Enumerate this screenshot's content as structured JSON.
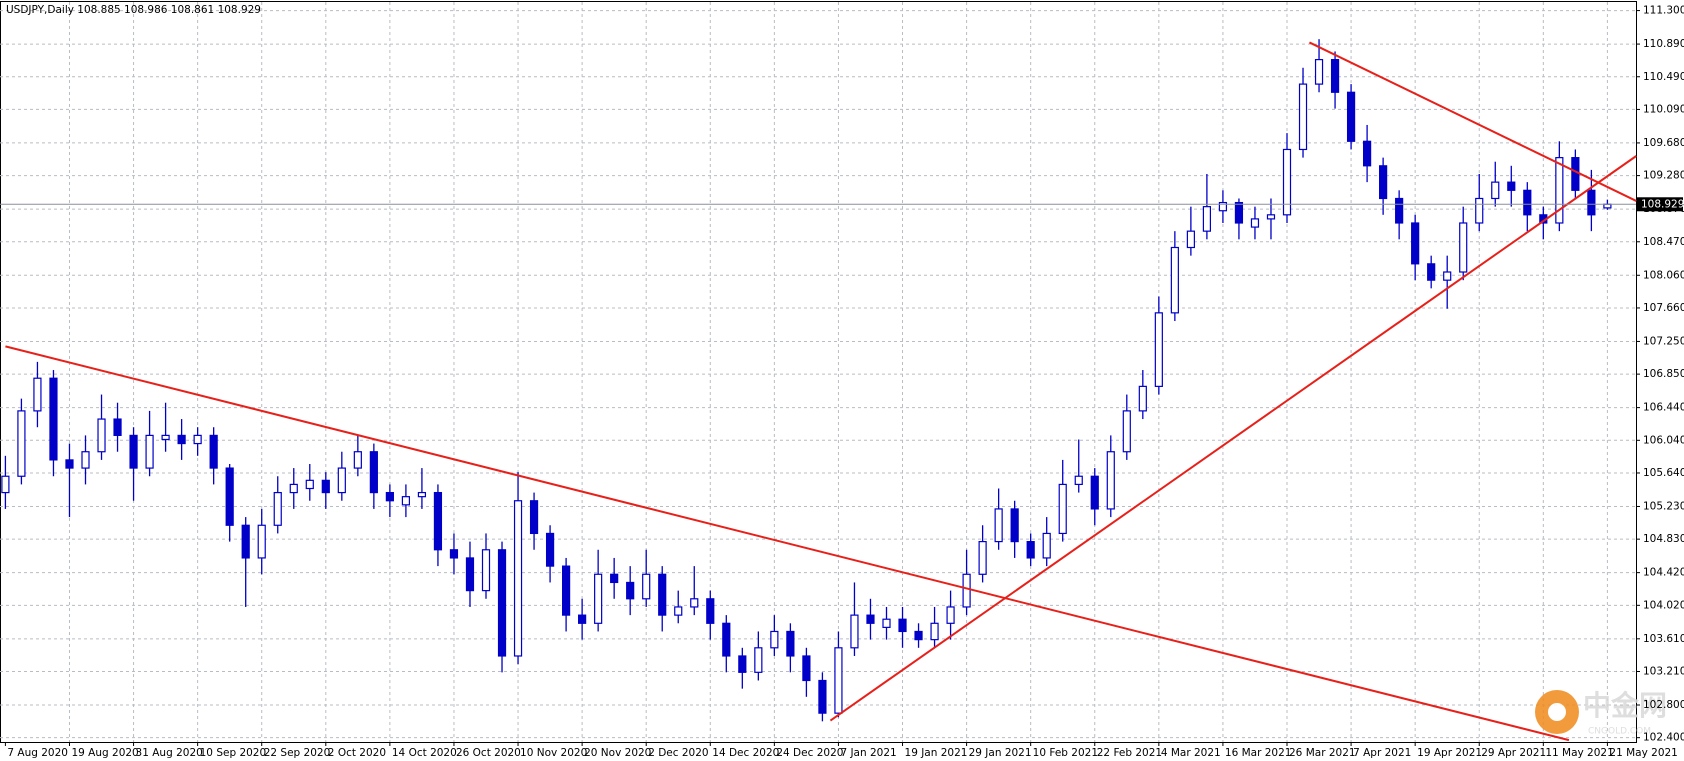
{
  "chart_data": {
    "type": "candlestick",
    "title": "USDJPY,Daily  108.885 108.986 108.861 108.929",
    "x": [
      "7 Aug 2020",
      null,
      null,
      null,
      "19 Aug 2020",
      null,
      null,
      null,
      "31 Aug 2020",
      null,
      null,
      null,
      "10 Sep 2020",
      null,
      null,
      null,
      "22 Sep 2020",
      null,
      null,
      null,
      "2 Oct 2020",
      null,
      null,
      null,
      "14 Oct 2020",
      null,
      null,
      null,
      "26 Oct 2020",
      null,
      null,
      null,
      "10 Nov 2020",
      null,
      null,
      null,
      "20 Nov 2020",
      null,
      null,
      null,
      "2 Dec 2020",
      null,
      null,
      null,
      "14 Dec 2020",
      null,
      null,
      null,
      "24 Dec 2020",
      null,
      null,
      null,
      "7 Jan 2021",
      null,
      null,
      null,
      "19 Jan 2021",
      null,
      null,
      null,
      "29 Jan 2021",
      null,
      null,
      null,
      "10 Feb 2021",
      null,
      null,
      null,
      "22 Feb 2021",
      null,
      null,
      null,
      "4 Mar 2021",
      null,
      null,
      null,
      "16 Mar 2021",
      null,
      null,
      null,
      "26 Mar 2021",
      null,
      null,
      null,
      "7 Apr 2021",
      null,
      null,
      null,
      "19 Apr 2021",
      null,
      null,
      null,
      "29 Apr 2021",
      null,
      null,
      null,
      "11 May 2021",
      null,
      null,
      null,
      "21 May 2021"
    ],
    "open": [
      105.4,
      105.6,
      106.4,
      106.8,
      105.8,
      105.7,
      105.9,
      106.3,
      106.1,
      105.7,
      106.05,
      106.1,
      106.0,
      106.1,
      105.7,
      105.0,
      104.6,
      105.0,
      105.4,
      105.45,
      105.55,
      105.4,
      105.7,
      105.9,
      105.4,
      105.25,
      105.35,
      105.4,
      104.7,
      104.6,
      104.2,
      104.7,
      103.4,
      105.3,
      104.9,
      104.5,
      103.9,
      103.8,
      104.4,
      104.3,
      104.1,
      104.4,
      103.9,
      104.0,
      104.1,
      103.8,
      103.4,
      103.2,
      103.5,
      103.7,
      103.4,
      103.1,
      102.7,
      103.5,
      103.9,
      103.75,
      103.85,
      103.7,
      103.6,
      103.8,
      104.0,
      104.4,
      104.8,
      105.2,
      104.8,
      104.6,
      104.9,
      105.5,
      105.6,
      105.2,
      105.9,
      106.4,
      106.7,
      107.6,
      108.4,
      108.6,
      108.85,
      108.95,
      108.65,
      108.75,
      108.8,
      109.6,
      110.4,
      110.7,
      110.3,
      109.7,
      109.4,
      109.0,
      108.7,
      108.2,
      108.0,
      108.1,
      108.7,
      109.0,
      109.2,
      109.1,
      108.8,
      108.7,
      109.5,
      109.1,
      108.885
    ],
    "high": [
      105.85,
      106.55,
      107.0,
      106.9,
      106.0,
      106.1,
      106.6,
      106.5,
      106.2,
      106.4,
      106.5,
      106.3,
      106.2,
      106.2,
      105.75,
      105.1,
      105.2,
      105.6,
      105.7,
      105.75,
      105.65,
      105.9,
      106.1,
      106.0,
      105.5,
      105.5,
      105.7,
      105.5,
      104.9,
      104.8,
      104.9,
      104.8,
      105.65,
      105.4,
      105.0,
      104.6,
      104.1,
      104.7,
      104.6,
      104.5,
      104.7,
      104.5,
      104.2,
      104.5,
      104.2,
      103.9,
      103.5,
      103.7,
      103.9,
      103.8,
      103.5,
      103.2,
      103.7,
      104.3,
      104.1,
      104.0,
      104.0,
      103.8,
      104.0,
      104.2,
      104.7,
      105.0,
      105.45,
      105.3,
      104.9,
      105.1,
      105.8,
      106.05,
      105.7,
      106.1,
      106.6,
      106.9,
      107.8,
      108.6,
      108.9,
      109.3,
      109.1,
      109.0,
      108.9,
      109.0,
      109.8,
      110.6,
      110.95,
      110.8,
      110.4,
      109.9,
      109.5,
      109.1,
      108.8,
      108.3,
      108.3,
      108.9,
      109.3,
      109.45,
      109.4,
      109.2,
      108.9,
      109.7,
      109.6,
      109.35,
      108.986
    ],
    "low": [
      105.2,
      105.5,
      106.2,
      105.6,
      105.1,
      105.5,
      105.8,
      105.9,
      105.3,
      105.6,
      105.9,
      105.8,
      105.85,
      105.5,
      104.8,
      104.0,
      104.4,
      104.9,
      105.2,
      105.3,
      105.2,
      105.3,
      105.6,
      105.2,
      105.1,
      105.1,
      105.2,
      104.5,
      104.4,
      104.0,
      104.1,
      103.2,
      103.3,
      104.7,
      104.3,
      103.7,
      103.6,
      103.7,
      104.1,
      103.9,
      104.0,
      103.7,
      103.8,
      103.9,
      103.6,
      103.2,
      103.0,
      103.1,
      103.4,
      103.2,
      102.9,
      102.6,
      102.65,
      103.4,
      103.6,
      103.6,
      103.5,
      103.5,
      103.5,
      103.6,
      103.9,
      104.3,
      104.7,
      104.6,
      104.5,
      104.5,
      104.8,
      105.4,
      105.0,
      105.1,
      105.8,
      106.3,
      106.6,
      107.5,
      108.3,
      108.5,
      108.7,
      108.5,
      108.5,
      108.5,
      108.7,
      109.5,
      110.3,
      110.1,
      109.6,
      109.2,
      108.8,
      108.5,
      108.0,
      107.9,
      107.65,
      108.0,
      108.6,
      108.9,
      108.9,
      108.6,
      108.5,
      108.6,
      109.0,
      108.6,
      108.861
    ],
    "close": [
      105.6,
      106.4,
      106.8,
      105.8,
      105.7,
      105.9,
      106.3,
      106.1,
      105.7,
      106.1,
      106.1,
      106.0,
      106.1,
      105.7,
      105.0,
      104.6,
      105.0,
      105.4,
      105.5,
      105.55,
      105.4,
      105.7,
      105.9,
      105.4,
      105.3,
      105.35,
      105.4,
      104.7,
      104.6,
      104.2,
      104.7,
      103.4,
      105.3,
      104.9,
      104.5,
      103.9,
      103.8,
      104.4,
      104.3,
      104.1,
      104.4,
      103.9,
      104.0,
      104.1,
      103.8,
      103.4,
      103.2,
      103.5,
      103.7,
      103.4,
      103.1,
      102.7,
      103.5,
      103.9,
      103.8,
      103.85,
      103.7,
      103.6,
      103.8,
      104.0,
      104.4,
      104.8,
      105.2,
      104.8,
      104.6,
      104.9,
      105.5,
      105.6,
      105.2,
      105.9,
      106.4,
      106.7,
      107.6,
      108.4,
      108.6,
      108.9,
      108.95,
      108.7,
      108.75,
      108.8,
      109.6,
      110.4,
      110.7,
      110.3,
      109.7,
      109.4,
      109.0,
      108.7,
      108.2,
      108.0,
      108.1,
      108.7,
      109.0,
      109.2,
      109.1,
      108.8,
      108.7,
      109.5,
      109.1,
      108.8,
      108.929
    ],
    "color": "#0000c8",
    "ylim": [
      102.347,
      111.405
    ],
    "yticks": [
      {
        "value": 102.4,
        "label": "102.400"
      },
      {
        "value": 102.8,
        "label": "102.800"
      },
      {
        "value": 103.21,
        "label": "103.210"
      },
      {
        "value": 103.61,
        "label": "103.610"
      },
      {
        "value": 104.02,
        "label": "104.020"
      },
      {
        "value": 104.42,
        "label": "104.420"
      },
      {
        "value": 104.83,
        "label": "104.830"
      },
      {
        "value": 105.23,
        "label": "105.230"
      },
      {
        "value": 105.64,
        "label": "105.640"
      },
      {
        "value": 106.04,
        "label": "106.040"
      },
      {
        "value": 106.44,
        "label": "106.440"
      },
      {
        "value": 106.85,
        "label": "106.850"
      },
      {
        "value": 107.25,
        "label": "107.250"
      },
      {
        "value": 107.66,
        "label": "107.660"
      },
      {
        "value": 108.06,
        "label": "108.060"
      },
      {
        "value": 108.47,
        "label": "108.470"
      },
      {
        "value": 108.87,
        "label": "108.870"
      },
      {
        "value": 109.28,
        "label": "109.280"
      },
      {
        "value": 109.68,
        "label": "109.680"
      },
      {
        "value": 110.09,
        "label": "110.090"
      },
      {
        "value": 110.49,
        "label": "110.490"
      },
      {
        "value": 110.89,
        "label": "110.890"
      },
      {
        "value": 111.3,
        "label": "111.300"
      }
    ],
    "grid": true,
    "trendlines": [
      {
        "x": [
          0,
          97.6
        ],
        "y": [
          107.19,
          102.37
        ],
        "color": "#e8201a"
      },
      {
        "x": [
          51.5,
          101.8
        ],
        "y": [
          102.61,
          109.52
        ],
        "color": "#e8201a"
      },
      {
        "x": [
          81.4,
          101.8
        ],
        "y": [
          110.91,
          108.97
        ],
        "color": "#e8201a"
      }
    ],
    "watermark": {
      "text": "中金网",
      "sub": "CNGOLD.COM"
    }
  }
}
